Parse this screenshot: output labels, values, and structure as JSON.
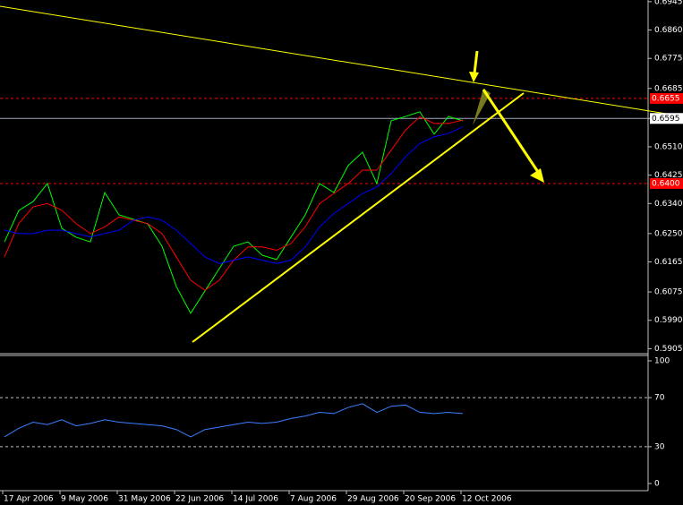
{
  "chart_data": [
    {
      "type": "line",
      "categories": [
        "17 Apr 2006",
        null,
        null,
        null,
        "9 May 2006",
        null,
        null,
        null,
        "31 May 2006",
        null,
        null,
        null,
        "22 Jun 2006",
        null,
        null,
        null,
        "14 Jul 2006",
        null,
        null,
        null,
        "7 Aug 2006",
        null,
        null,
        null,
        "29 Aug 2006",
        null,
        null,
        null,
        "20 Sep 2006",
        null,
        null,
        null,
        "12 Oct 2006"
      ],
      "series": [
        {
          "color": "#00ff00",
          "values": [
            0.6225,
            0.6319,
            0.6346,
            0.64,
            0.6266,
            0.6239,
            0.6225,
            0.6373,
            0.6306,
            0.6293,
            0.6279,
            0.6212,
            0.6091,
            0.6011,
            0.6078,
            0.6145,
            0.6212,
            0.6225,
            0.6185,
            0.6172,
            0.6239,
            0.6306,
            0.64,
            0.6373,
            0.6454,
            0.6494,
            0.64,
            0.6588,
            0.6601,
            0.6615,
            0.6548,
            0.6601,
            0.6588
          ]
        },
        {
          "color": "#ff0000",
          "values": [
            0.618,
            0.628,
            0.633,
            0.634,
            0.632,
            0.628,
            0.625,
            0.627,
            0.63,
            0.629,
            0.628,
            0.625,
            0.618,
            0.611,
            0.608,
            0.611,
            0.617,
            0.621,
            0.621,
            0.62,
            0.622,
            0.627,
            0.634,
            0.637,
            0.64,
            0.644,
            0.644,
            0.65,
            0.656,
            0.66,
            0.658,
            0.658,
            0.659
          ]
        },
        {
          "color": "#0000ff",
          "values": [
            0.626,
            0.625,
            0.625,
            0.626,
            0.626,
            0.625,
            0.624,
            0.625,
            0.626,
            0.629,
            0.63,
            0.629,
            0.626,
            0.622,
            0.618,
            0.616,
            0.617,
            0.618,
            0.617,
            0.616,
            0.617,
            0.621,
            0.627,
            0.631,
            0.634,
            0.637,
            0.639,
            0.643,
            0.648,
            0.652,
            0.654,
            0.655,
            0.657
          ]
        }
      ],
      "ylim": [
        0.589,
        0.695
      ],
      "yticks": [
        0.6945,
        {
          "value": 0.686,
          "label": "0.6860"
        },
        0.6775,
        0.6685,
        0.6595,
        {
          "value": 0.651,
          "label": "0.6510"
        },
        0.6425,
        {
          "value": 0.634,
          "label": "0.6340"
        },
        {
          "value": 0.625,
          "label": "0.6250"
        },
        0.6165,
        0.6075,
        {
          "value": 0.599,
          "label": "0.5990"
        },
        0.5905
      ],
      "levels": [
        {
          "value": 0.6655,
          "label": "0.6655",
          "color": "#ff0000"
        },
        {
          "value": 0.64,
          "label": "0.6400",
          "color": "#ff0000"
        },
        {
          "value": 0.6595,
          "label": "0.6595",
          "color": "#a0a8c0"
        }
      ]
    },
    {
      "type": "line",
      "series": [
        {
          "color": "#3a7fff",
          "values": [
            38,
            45,
            50,
            48,
            52,
            47,
            49,
            52,
            50,
            49,
            48,
            47,
            44,
            38,
            44,
            46,
            48,
            50,
            49,
            50,
            53,
            55,
            58,
            57,
            62,
            65,
            58,
            63,
            64,
            58,
            57,
            58,
            57
          ]
        }
      ],
      "ylim": [
        0,
        100
      ],
      "yticks": [
        0,
        30,
        70,
        100
      ]
    }
  ]
}
